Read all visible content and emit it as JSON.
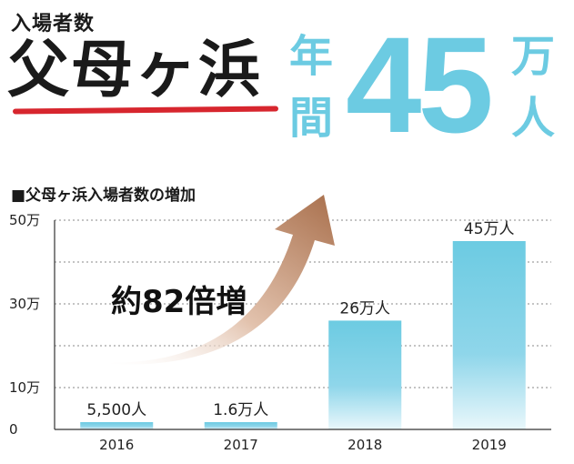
{
  "header": {
    "label": "入場者数",
    "place": "父母ヶ浜",
    "stat_prefix_1": "年",
    "stat_prefix_2": "間",
    "stat_number": "45",
    "stat_unit_1": "万",
    "stat_unit_2": "人"
  },
  "colors": {
    "accent": "#6ccbe2",
    "underline": "#d7262e",
    "arrow": "#a9704d"
  },
  "annotation": {
    "growth": "約82倍増"
  },
  "chart_data": {
    "type": "bar",
    "title": "■父母ヶ浜入場者数の増加",
    "categories": [
      "2016",
      "2017",
      "2018",
      "2019"
    ],
    "values": [
      0.55,
      1.6,
      26,
      45
    ],
    "value_labels": [
      "5,500人",
      "1.6万人",
      "26万人",
      "45万人"
    ],
    "yticks": [
      0,
      10,
      30,
      50
    ],
    "ytick_labels": [
      "0",
      "10万",
      "30万",
      "50万"
    ],
    "ylim": [
      0,
      50
    ],
    "y_unit": "万人",
    "grid": true,
    "gridline_values": [
      10,
      20,
      30,
      40,
      50
    ],
    "bar_color": "#6ccbe2"
  }
}
